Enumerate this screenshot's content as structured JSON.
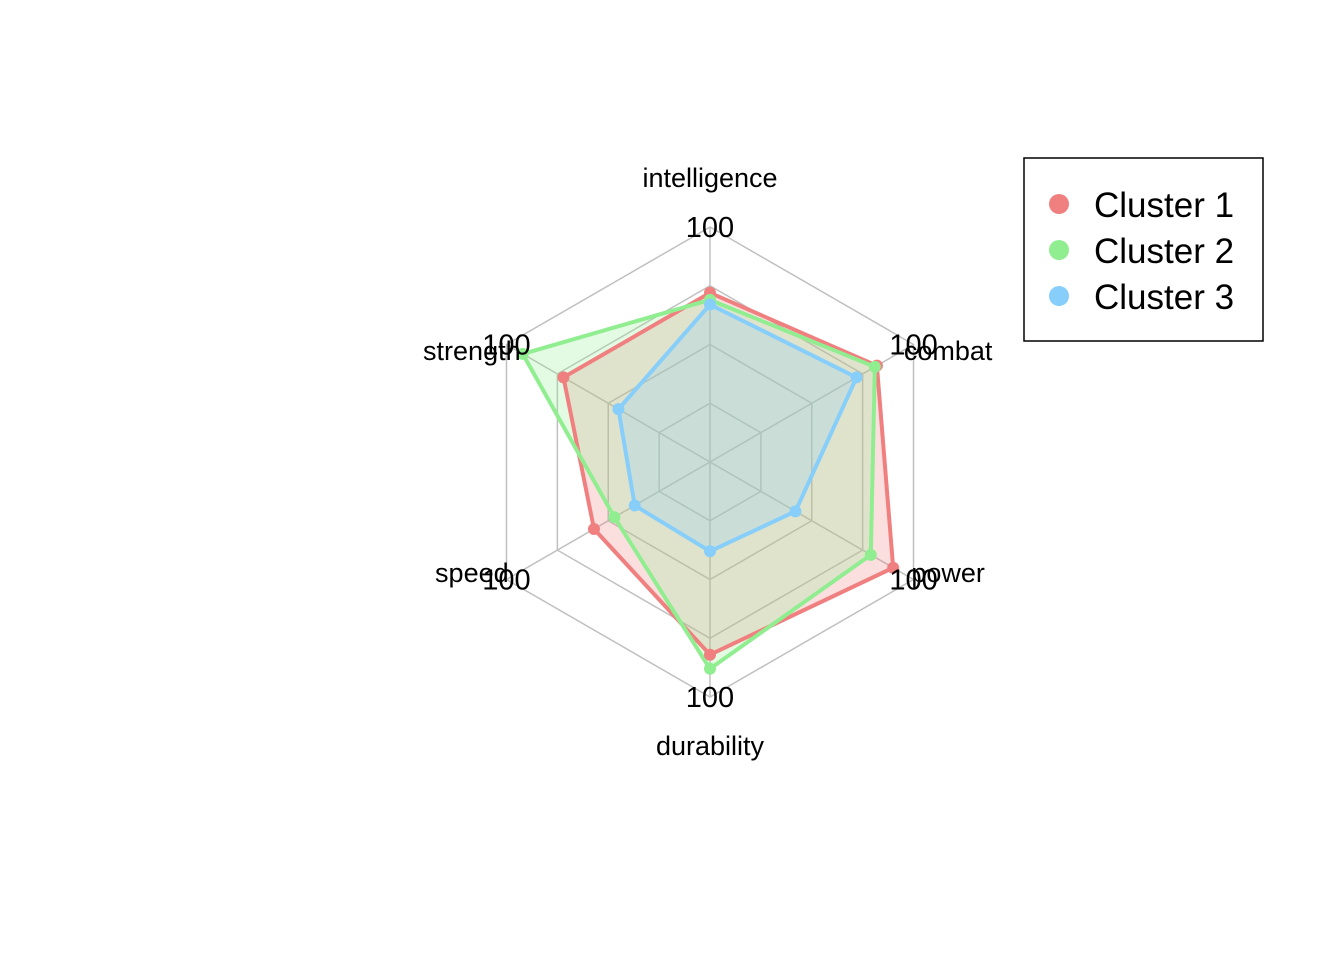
{
  "chart_data": {
    "type": "radar",
    "axes": [
      "intelligence",
      "combat",
      "power",
      "durability",
      "speed",
      "strength"
    ],
    "range": [
      0,
      100
    ],
    "grid": true,
    "grid_levels": 4,
    "tick_labels": [
      "100",
      "100",
      "100",
      "100",
      "100",
      "100"
    ],
    "legend_position": "top-right",
    "series": [
      {
        "name": "Cluster 1",
        "color": "#F08080",
        "values": [
          72,
          82,
          90,
          82,
          57,
          72
        ]
      },
      {
        "name": "Cluster 2",
        "color": "#90EE90",
        "values": [
          69,
          81,
          79,
          88,
          47,
          92
        ]
      },
      {
        "name": "Cluster 3",
        "color": "#87CEFA",
        "values": [
          67,
          72,
          42,
          38,
          37,
          45
        ]
      }
    ]
  }
}
